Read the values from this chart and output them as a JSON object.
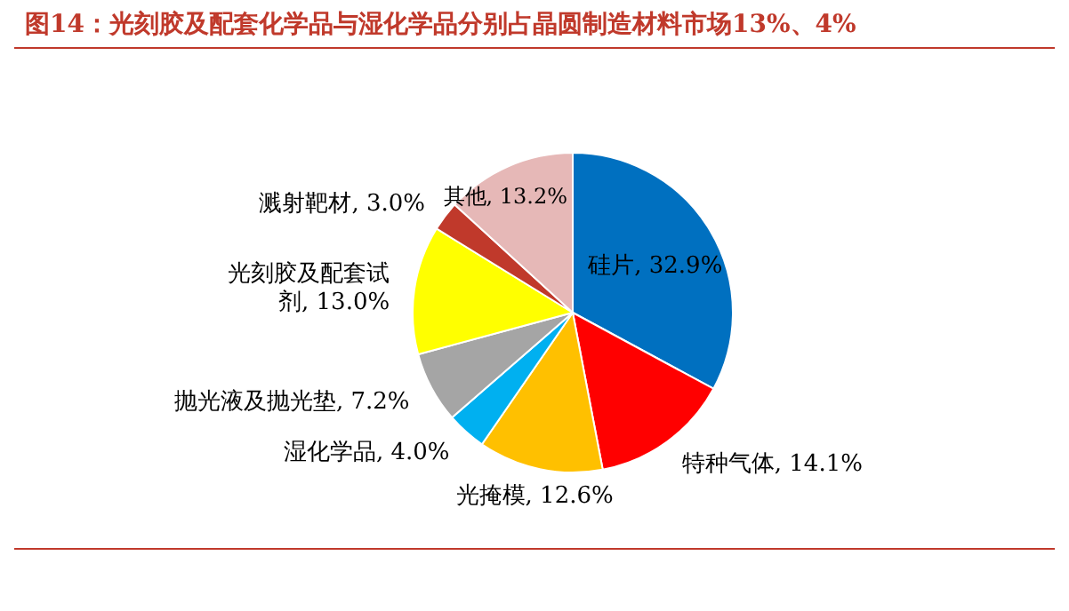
{
  "chart_data": {
    "type": "pie",
    "title": "图14：光刻胶及配套化学品与湿化学品分别占晶圆制造材料市场13%、4%",
    "categories": [
      "硅片",
      "特种气体",
      "光掩模",
      "湿化学品",
      "抛光液及抛光垫",
      "光刻胶及配套试剂",
      "溅射靶材",
      "其他"
    ],
    "values": [
      32.9,
      14.1,
      12.6,
      4.0,
      7.2,
      13.0,
      3.0,
      13.2
    ],
    "value_labels": [
      "32.9%",
      "14.1%",
      "12.6%",
      "4.0%",
      "7.2%",
      "13.0%",
      "3.0%",
      "13.2%"
    ],
    "colors": [
      "#0070c0",
      "#ff0000",
      "#ffc000",
      "#00b0f0",
      "#a5a5a5",
      "#ffff00",
      "#c0392b",
      "#e6b8b7"
    ],
    "legend": false
  }
}
